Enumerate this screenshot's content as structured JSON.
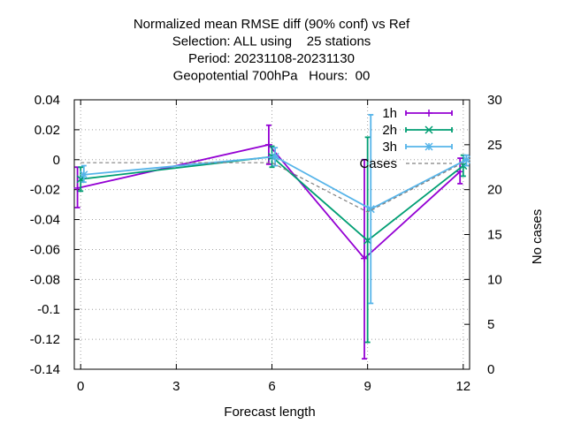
{
  "chart_data": {
    "type": "line",
    "title": [
      "Normalized mean RMSE diff (90% conf) vs Ref",
      "Selection: ALL using    25 stations",
      "Period: 20231108-20231130",
      "Geopotential 700hPa   Hours:  00"
    ],
    "xlabel": "Forecast length",
    "ylabel": "",
    "y2label": "No cases",
    "xlim": [
      -0.2,
      12.2
    ],
    "ylim": [
      -0.14,
      0.04
    ],
    "y2lim": [
      0,
      30
    ],
    "xticks": [
      "0",
      "3",
      "6",
      "9",
      "12"
    ],
    "xtick_values": [
      0,
      3,
      6,
      9,
      12
    ],
    "yticks": [
      "0.04",
      "0.02",
      "0",
      "-0.02",
      "-0.04",
      "-0.06",
      "-0.08",
      "-0.1",
      "-0.12",
      "-0.14"
    ],
    "ytick_values": [
      0.04,
      0.02,
      0,
      -0.02,
      -0.04,
      -0.06,
      -0.08,
      -0.1,
      -0.12,
      -0.14
    ],
    "y2ticks": [
      "30",
      "25",
      "20",
      "15",
      "10",
      "5",
      "0"
    ],
    "y2tick_values": [
      30,
      25,
      20,
      15,
      10,
      5,
      0
    ],
    "grid": true,
    "legend_position": "top-right",
    "series": [
      {
        "name": "1h",
        "color": "#9400d3",
        "marker": "plus",
        "x": [
          -0.1,
          5.9,
          8.9,
          11.9
        ],
        "y": [
          -0.019,
          0.01,
          -0.066,
          -0.008
        ],
        "err_low": [
          -0.032,
          -0.003,
          -0.133,
          -0.016
        ],
        "err_high": [
          -0.005,
          0.023,
          0.0,
          0.001
        ]
      },
      {
        "name": "2h",
        "color": "#009e73",
        "marker": "cross",
        "x": [
          0.0,
          6.0,
          9.0,
          12.0
        ],
        "y": [
          -0.013,
          0.002,
          -0.054,
          -0.004
        ],
        "err_low": [
          -0.021,
          -0.005,
          -0.122,
          -0.011
        ],
        "err_high": [
          -0.005,
          0.009,
          0.015,
          0.003
        ]
      },
      {
        "name": "3h",
        "color": "#56b4e9",
        "marker": "star",
        "x": [
          0.1,
          6.1,
          9.1,
          12.1
        ],
        "y": [
          -0.01,
          0.002,
          -0.033,
          0.0
        ],
        "err_low": [
          -0.015,
          -0.004,
          -0.096,
          -0.004
        ],
        "err_high": [
          -0.004,
          0.008,
          0.03,
          0.003
        ]
      },
      {
        "name": "Cases",
        "color": "#808080",
        "style": "dashed",
        "axis": "y2",
        "x": [
          0,
          6,
          9,
          12
        ],
        "y": [
          23,
          23,
          17.5,
          23
        ]
      }
    ]
  }
}
